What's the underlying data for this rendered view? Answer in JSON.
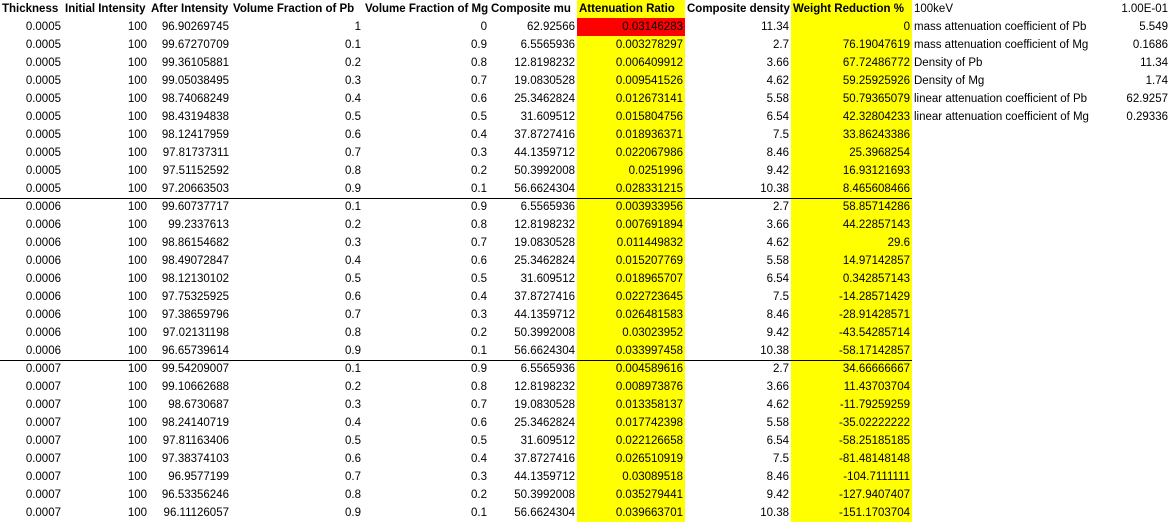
{
  "headers": [
    "Thickness",
    "Initial Intensity",
    "After Intensity",
    "Volume Fraction of Pb",
    "Volume Fraction of Mg",
    "Composite mu",
    "Attenuation Ratio",
    "Composite density",
    "Weight Reduction %"
  ],
  "rows": [
    [
      "0.0005",
      "100",
      "96.90269745",
      "1",
      "0",
      "62.92566",
      "0.03146283",
      "11.34",
      "0"
    ],
    [
      "0.0005",
      "100",
      "99.67270709",
      "0.1",
      "0.9",
      "6.5565936",
      "0.003278297",
      "2.7",
      "76.19047619"
    ],
    [
      "0.0005",
      "100",
      "99.36105881",
      "0.2",
      "0.8",
      "12.8198232",
      "0.006409912",
      "3.66",
      "67.72486772"
    ],
    [
      "0.0005",
      "100",
      "99.05038495",
      "0.3",
      "0.7",
      "19.0830528",
      "0.009541526",
      "4.62",
      "59.25925926"
    ],
    [
      "0.0005",
      "100",
      "98.74068249",
      "0.4",
      "0.6",
      "25.3462824",
      "0.012673141",
      "5.58",
      "50.79365079"
    ],
    [
      "0.0005",
      "100",
      "98.43194838",
      "0.5",
      "0.5",
      "31.609512",
      "0.015804756",
      "6.54",
      "42.32804233"
    ],
    [
      "0.0005",
      "100",
      "98.12417959",
      "0.6",
      "0.4",
      "37.8727416",
      "0.018936371",
      "7.5",
      "33.86243386"
    ],
    [
      "0.0005",
      "100",
      "97.81737311",
      "0.7",
      "0.3",
      "44.1359712",
      "0.022067986",
      "8.46",
      "25.3968254"
    ],
    [
      "0.0005",
      "100",
      "97.51152592",
      "0.8",
      "0.2",
      "50.3992008",
      "0.0251996",
      "9.42",
      "16.93121693"
    ],
    [
      "0.0005",
      "100",
      "97.20663503",
      "0.9",
      "0.1",
      "56.6624304",
      "0.028331215",
      "10.38",
      "8.465608466"
    ],
    [
      "0.0006",
      "100",
      "99.60737717",
      "0.1",
      "0.9",
      "6.5565936",
      "0.003933956",
      "2.7",
      "58.85714286"
    ],
    [
      "0.0006",
      "100",
      "99.2337613",
      "0.2",
      "0.8",
      "12.8198232",
      "0.007691894",
      "3.66",
      "44.22857143"
    ],
    [
      "0.0006",
      "100",
      "98.86154682",
      "0.3",
      "0.7",
      "19.0830528",
      "0.011449832",
      "4.62",
      "29.6"
    ],
    [
      "0.0006",
      "100",
      "98.49072847",
      "0.4",
      "0.6",
      "25.3462824",
      "0.015207769",
      "5.58",
      "14.97142857"
    ],
    [
      "0.0006",
      "100",
      "98.12130102",
      "0.5",
      "0.5",
      "31.609512",
      "0.018965707",
      "6.54",
      "0.342857143"
    ],
    [
      "0.0006",
      "100",
      "97.75325925",
      "0.6",
      "0.4",
      "37.8727416",
      "0.022723645",
      "7.5",
      "-14.28571429"
    ],
    [
      "0.0006",
      "100",
      "97.38659796",
      "0.7",
      "0.3",
      "44.1359712",
      "0.026481583",
      "8.46",
      "-28.91428571"
    ],
    [
      "0.0006",
      "100",
      "97.02131198",
      "0.8",
      "0.2",
      "50.3992008",
      "0.03023952",
      "9.42",
      "-43.54285714"
    ],
    [
      "0.0006",
      "100",
      "96.65739614",
      "0.9",
      "0.1",
      "56.6624304",
      "0.033997458",
      "10.38",
      "-58.17142857"
    ],
    [
      "0.0007",
      "100",
      "99.54209007",
      "0.1",
      "0.9",
      "6.5565936",
      "0.004589616",
      "2.7",
      "34.66666667"
    ],
    [
      "0.0007",
      "100",
      "99.10662688",
      "0.2",
      "0.8",
      "12.8198232",
      "0.008973876",
      "3.66",
      "11.43703704"
    ],
    [
      "0.0007",
      "100",
      "98.6730687",
      "0.3",
      "0.7",
      "19.0830528",
      "0.013358137",
      "4.62",
      "-11.79259259"
    ],
    [
      "0.0007",
      "100",
      "98.24140719",
      "0.4",
      "0.6",
      "25.3462824",
      "0.017742398",
      "5.58",
      "-35.02222222"
    ],
    [
      "0.0007",
      "100",
      "97.81163406",
      "0.5",
      "0.5",
      "31.609512",
      "0.022126658",
      "6.54",
      "-58.25185185"
    ],
    [
      "0.0007",
      "100",
      "97.38374103",
      "0.6",
      "0.4",
      "37.8727416",
      "0.026510919",
      "7.5",
      "-81.48148148"
    ],
    [
      "0.0007",
      "100",
      "96.9577199",
      "0.7",
      "0.3",
      "44.1359712",
      "0.03089518",
      "8.46",
      "-104.7111111"
    ],
    [
      "0.0007",
      "100",
      "96.53356246",
      "0.8",
      "0.2",
      "50.3992008",
      "0.035279441",
      "9.42",
      "-127.9407407"
    ],
    [
      "0.0007",
      "100",
      "96.11126057",
      "0.9",
      "0.1",
      "56.6624304",
      "0.039663701",
      "10.38",
      "-151.1703704"
    ]
  ],
  "side_params": [
    {
      "label": "100keV",
      "value": "1.00E-01"
    },
    {
      "label": "mass attenuation coefficient of Pb",
      "value": "5.549"
    },
    {
      "label": "mass attenuation coefficient of Mg",
      "value": "0.1686"
    },
    {
      "label": "Density of Pb",
      "value": "11.34"
    },
    {
      "label": "Density of Mg",
      "value": "1.74"
    },
    {
      "label": "linear attenuation coefficient of Pb",
      "value": "62.9257"
    },
    {
      "label": "linear attenuation coefficient of Mg",
      "value": "0.29336"
    }
  ],
  "colors": {
    "highlight_yellow": "#ffff00",
    "highlight_red": "#ff0000"
  }
}
